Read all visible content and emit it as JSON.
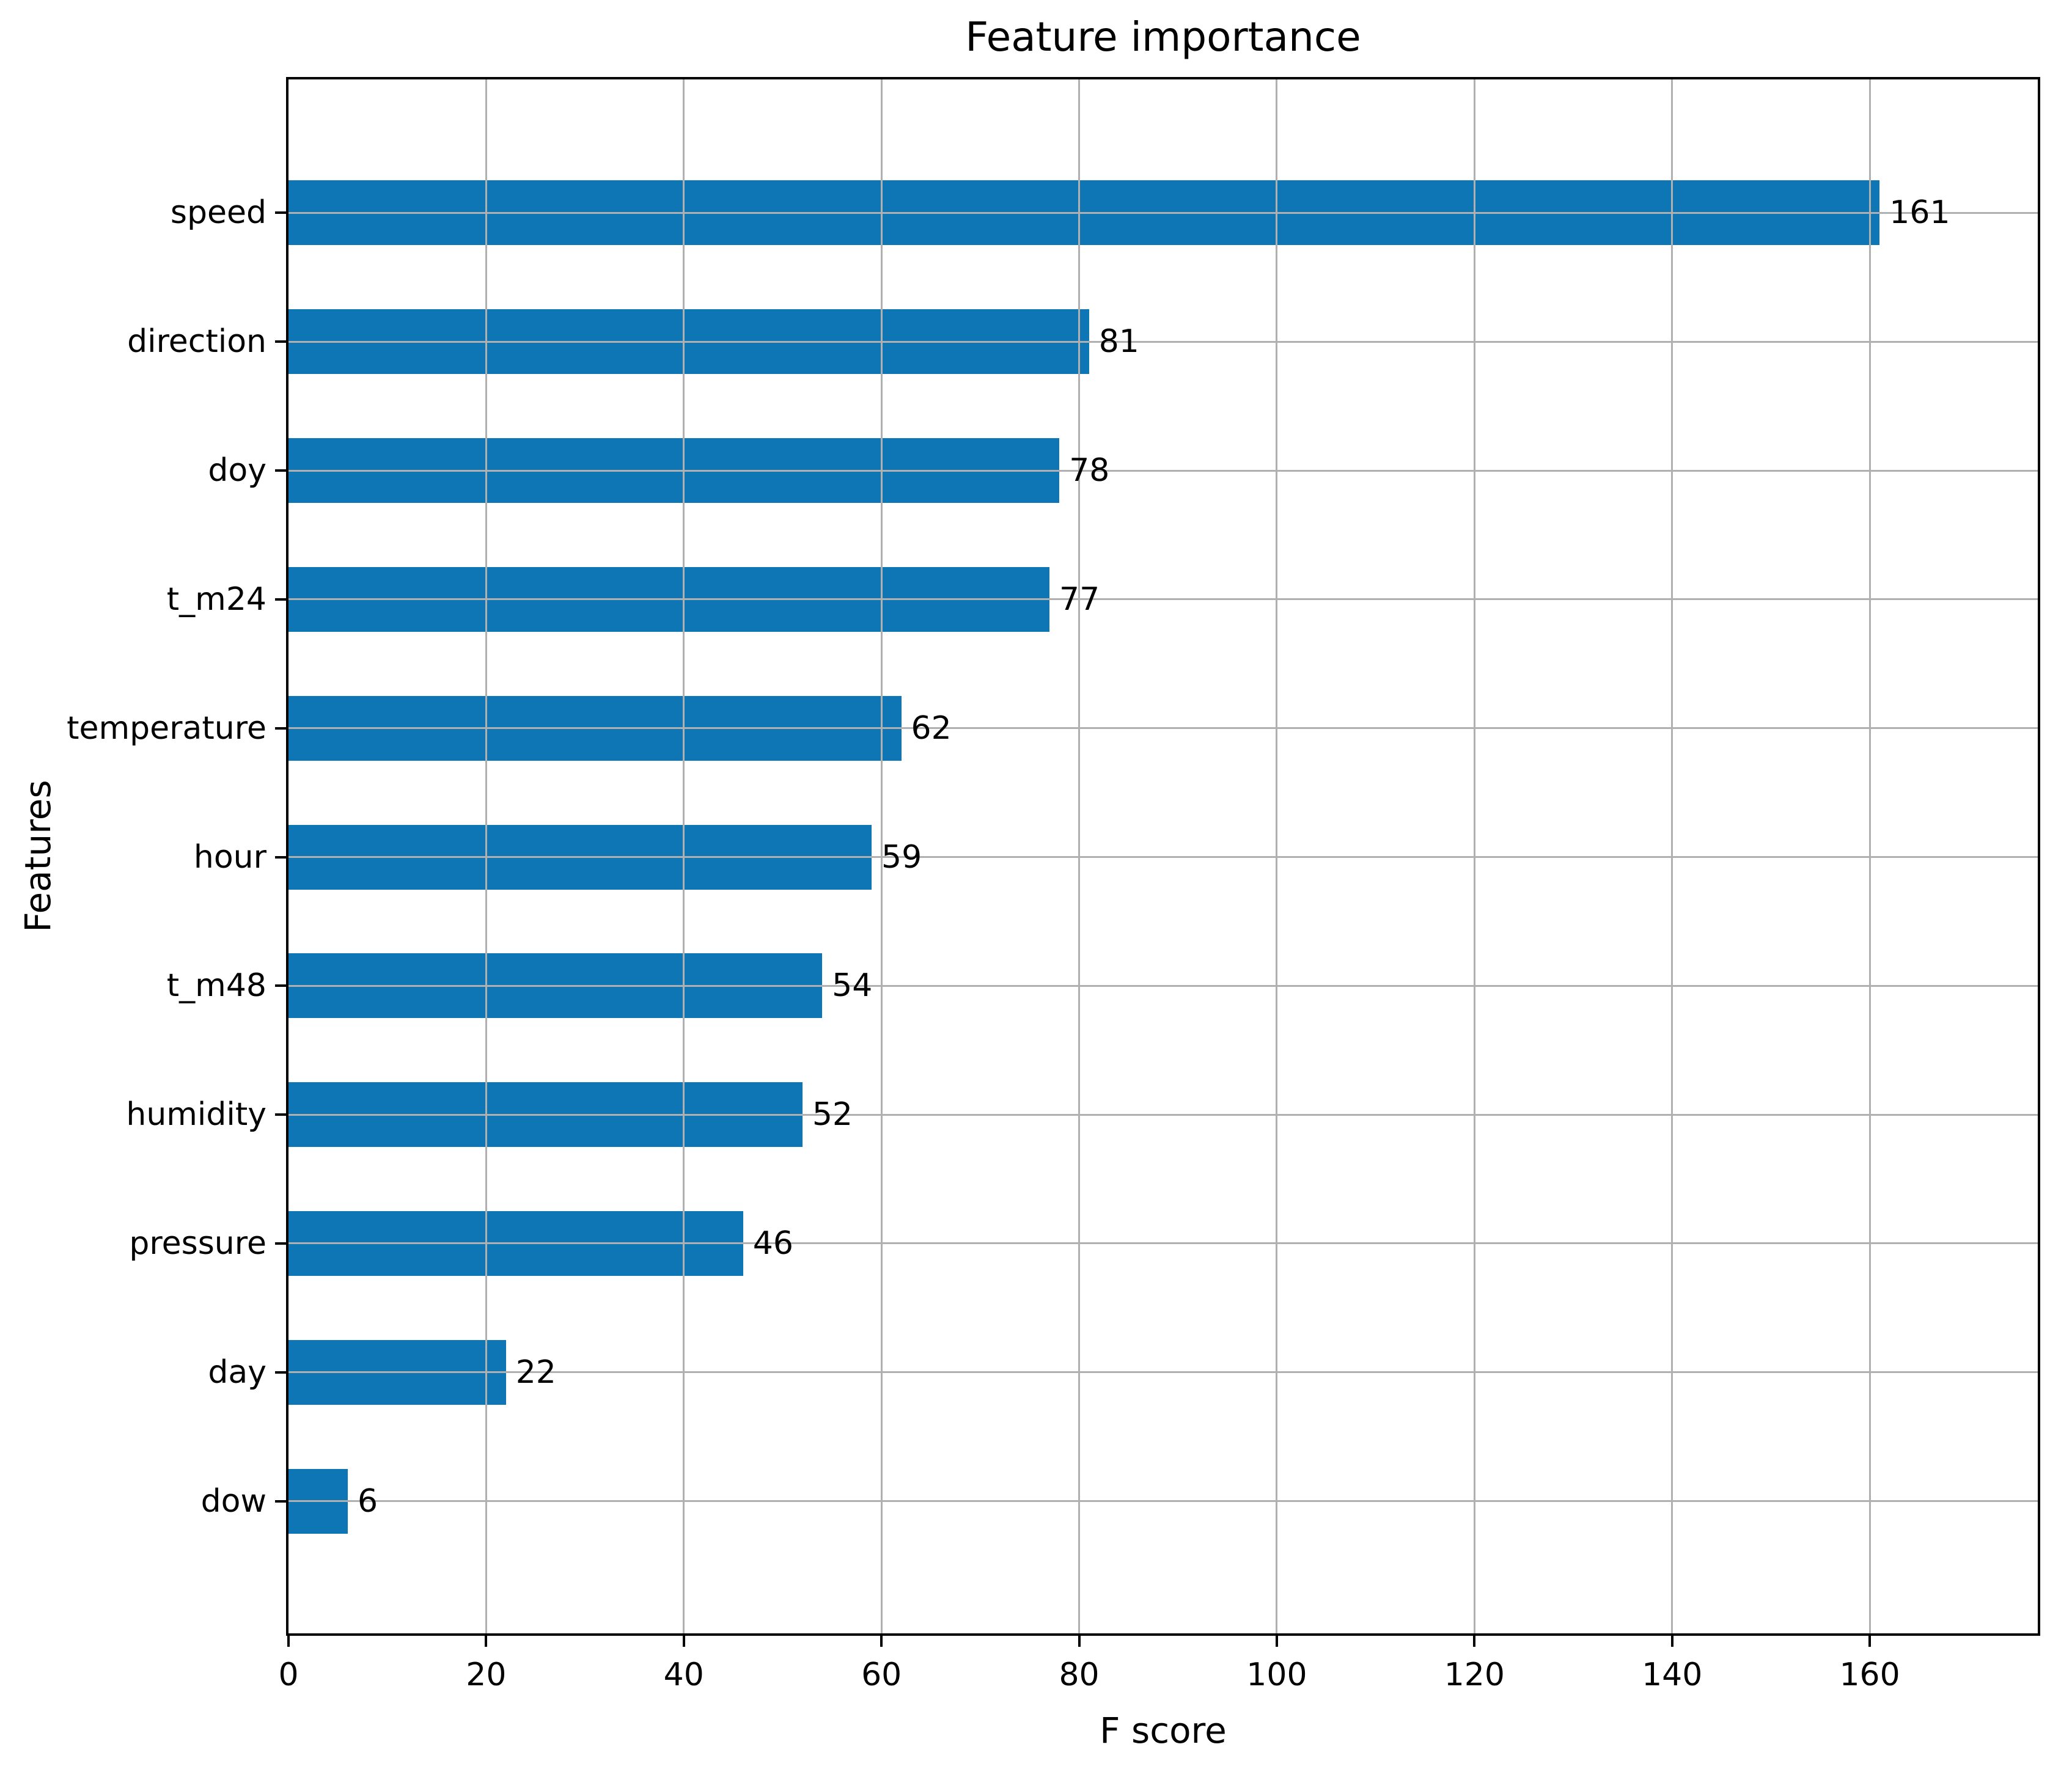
{
  "chart_data": {
    "type": "bar",
    "orientation": "horizontal",
    "title": "Feature importance",
    "xlabel": "F score",
    "ylabel": "Features",
    "categories": [
      "speed",
      "direction",
      "doy",
      "t_m24",
      "temperature",
      "hour",
      "t_m48",
      "humidity",
      "pressure",
      "day",
      "dow"
    ],
    "values": [
      161,
      81,
      78,
      77,
      62,
      59,
      54,
      52,
      46,
      22,
      6
    ],
    "value_labels": [
      "161",
      "81",
      "78",
      "77",
      "62",
      "59",
      "54",
      "52",
      "46",
      "22",
      "6"
    ],
    "x_ticks": [
      0,
      20,
      40,
      60,
      80,
      100,
      120,
      140,
      160
    ],
    "x_tick_labels": [
      "0",
      "20",
      "40",
      "60",
      "80",
      "100",
      "120",
      "140",
      "160"
    ],
    "xlim": [
      0,
      177
    ],
    "grid": true,
    "legend": "none",
    "bar_color": "#0e76b5",
    "grid_color": "#b0b0b0",
    "spine_color": "#000000",
    "background_color": "#ffffff"
  }
}
